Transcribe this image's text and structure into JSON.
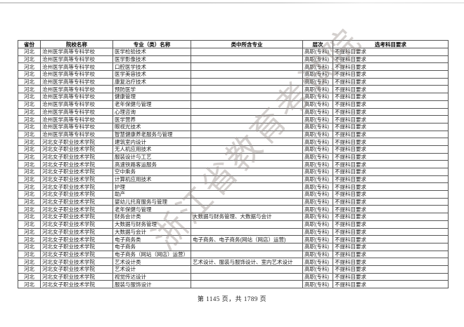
{
  "document": {
    "watermark_text": "浙江省教育考试院",
    "footer_text": "第 1145 页，共 1789 页"
  },
  "colors": {
    "watermark": "rgba(152,144,138,0.42)",
    "table_border": "#555555",
    "text": "#222222",
    "background": "#ffffff"
  },
  "table": {
    "headers": [
      "省份",
      "院校名称",
      "专业（类）名称",
      "类中所含专业",
      "层次",
      "选考科目要求"
    ],
    "rows": [
      {
        "province": "河北",
        "school": "沧州医学高等专科学校",
        "major": "医学检验技术",
        "included": "",
        "level": "高职(专科)",
        "requirement": "不提科目要求"
      },
      {
        "province": "河北",
        "school": "沧州医学高等专科学校",
        "major": "医学影像技术",
        "included": "",
        "level": "高职(专科)",
        "requirement": "不提科目要求"
      },
      {
        "province": "河北",
        "school": "沧州医学高等专科学校",
        "major": "口腔医学技术",
        "included": "",
        "level": "高职(专科)",
        "requirement": "不提科目要求"
      },
      {
        "province": "河北",
        "school": "沧州医学高等专科学校",
        "major": "医学美容技术",
        "included": "",
        "level": "高职(专科)",
        "requirement": "不提科目要求"
      },
      {
        "province": "河北",
        "school": "沧州医学高等专科学校",
        "major": "康复治疗技术",
        "included": "",
        "level": "高职(专科)",
        "requirement": "不提科目要求"
      },
      {
        "province": "河北",
        "school": "沧州医学高等专科学校",
        "major": "预防医学",
        "included": "",
        "level": "高职(专科)",
        "requirement": "不提科目要求"
      },
      {
        "province": "河北",
        "school": "沧州医学高等专科学校",
        "major": "健康管理",
        "included": "",
        "level": "高职(专科)",
        "requirement": "不提科目要求"
      },
      {
        "province": "河北",
        "school": "沧州医学高等专科学校",
        "major": "老年保健与管理",
        "included": "",
        "level": "高职(专科)",
        "requirement": "不提科目要求"
      },
      {
        "province": "河北",
        "school": "沧州医学高等专科学校",
        "major": "心理咨询",
        "included": "",
        "level": "高职(专科)",
        "requirement": "不提科目要求"
      },
      {
        "province": "河北",
        "school": "沧州医学高等专科学校",
        "major": "医学营养",
        "included": "",
        "level": "高职(专科)",
        "requirement": "不提科目要求"
      },
      {
        "province": "河北",
        "school": "沧州医学高等专科学校",
        "major": "眼视光技术",
        "included": "",
        "level": "高职(专科)",
        "requirement": "不提科目要求"
      },
      {
        "province": "河北",
        "school": "沧州医学高等专科学校",
        "major": "智慧健康养老服务与管理",
        "included": "",
        "level": "高职(专科)",
        "requirement": "不提科目要求"
      },
      {
        "province": "河北",
        "school": "河北女子职业技术学院",
        "major": "建筑室内设计",
        "included": "",
        "level": "高职(专科)",
        "requirement": "不提科目要求"
      },
      {
        "province": "河北",
        "school": "河北女子职业技术学院",
        "major": "无人机应用技术",
        "included": "",
        "level": "高职(专科)",
        "requirement": "不提科目要求"
      },
      {
        "province": "河北",
        "school": "河北女子职业技术学院",
        "major": "服装设计与工艺",
        "included": "",
        "level": "高职(专科)",
        "requirement": "不提科目要求"
      },
      {
        "province": "河北",
        "school": "河北女子职业技术学院",
        "major": "高速铁路客运服务",
        "included": "",
        "level": "高职(专科)",
        "requirement": "不提科目要求"
      },
      {
        "province": "河北",
        "school": "河北女子职业技术学院",
        "major": "空中乘务",
        "included": "",
        "level": "高职(专科)",
        "requirement": "不提科目要求"
      },
      {
        "province": "河北",
        "school": "河北女子职业技术学院",
        "major": "计算机应用技术",
        "included": "",
        "level": "高职(专科)",
        "requirement": "不提科目要求"
      },
      {
        "province": "河北",
        "school": "河北女子职业技术学院",
        "major": "护理",
        "included": "",
        "level": "高职(专科)",
        "requirement": "不提科目要求"
      },
      {
        "province": "河北",
        "school": "河北女子职业技术学院",
        "major": "助产",
        "included": "",
        "level": "高职(专科)",
        "requirement": "不提科目要求"
      },
      {
        "province": "河北",
        "school": "河北女子职业技术学院",
        "major": "婴幼儿托育服务与管理",
        "included": "",
        "level": "高职(专科)",
        "requirement": "不提科目要求"
      },
      {
        "province": "河北",
        "school": "河北女子职业技术学院",
        "major": "老年保健与管理",
        "included": "",
        "level": "高职(专科)",
        "requirement": "不提科目要求"
      },
      {
        "province": "河北",
        "school": "河北女子职业技术学院",
        "major": "财务会计类",
        "included": "大数据与财务管理、大数据与会计",
        "level": "高职(专科)",
        "requirement": "不提科目要求"
      },
      {
        "province": "河北",
        "school": "河北女子职业技术学院",
        "major": "大数据与财务管理",
        "included": "",
        "level": "高职(专科)",
        "requirement": "不提科目要求"
      },
      {
        "province": "河北",
        "school": "河北女子职业技术学院",
        "major": "大数据与会计",
        "included": "",
        "level": "高职(专科)",
        "requirement": "不提科目要求"
      },
      {
        "province": "河北",
        "school": "河北女子职业技术学院",
        "major": "电子商务类",
        "included": "电子商务、电子商务(网站（网店）运营)",
        "level": "高职(专科)",
        "requirement": "不提科目要求"
      },
      {
        "province": "河北",
        "school": "河北女子职业技术学院",
        "major": "电子商务",
        "included": "",
        "level": "高职(专科)",
        "requirement": "不提科目要求"
      },
      {
        "province": "河北",
        "school": "河北女子职业技术学院",
        "major": "电子商务（网站（网店）运营）",
        "included": "",
        "level": "高职(专科)",
        "requirement": "不提科目要求"
      },
      {
        "province": "河北",
        "school": "河北女子职业技术学院",
        "major": "艺术设计类",
        "included": "艺术设计、服装与服饰设计、室内艺术设计",
        "level": "高职(专科)",
        "requirement": "不提科目要求"
      },
      {
        "province": "河北",
        "school": "河北女子职业技术学院",
        "major": "艺术设计",
        "included": "",
        "level": "高职(专科)",
        "requirement": "不提科目要求"
      },
      {
        "province": "河北",
        "school": "河北女子职业技术学院",
        "major": "视觉传达设计",
        "included": "",
        "level": "高职(专科)",
        "requirement": "不提科目要求"
      },
      {
        "province": "河北",
        "school": "河北女子职业技术学院",
        "major": "服装与服饰设计",
        "included": "",
        "level": "高职(专科)",
        "requirement": "不提科目要求"
      }
    ]
  }
}
